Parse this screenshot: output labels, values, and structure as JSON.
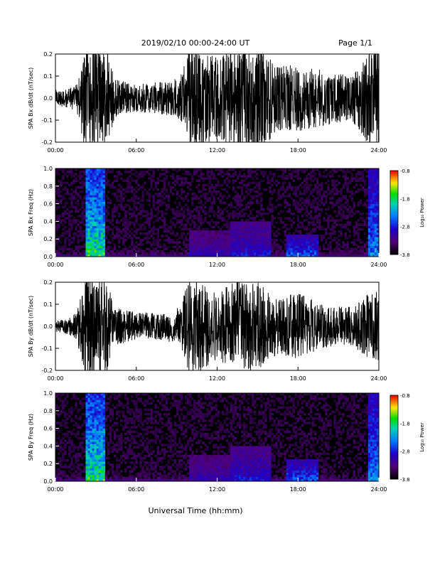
{
  "header": {
    "title": "2019/02/10  00:00-24:00 UT",
    "page": "Page 1/1"
  },
  "xlabel": "Universal Time (hh:mm)",
  "colorbar": {
    "label": "Log₁₀ Power",
    "ticks": [
      "-0.8",
      "-1.8",
      "-2.8",
      "-3.8"
    ],
    "range": [
      -3.8,
      -0.8
    ]
  },
  "chart_data": [
    {
      "type": "line",
      "title": "",
      "ylabel": "SPA Bx dB/dt (nT/sec)",
      "xticks": [
        "00:00",
        "06:00",
        "12:00",
        "18:00",
        "24:00"
      ],
      "yticks": [
        "0.2",
        "0.1",
        "0.0",
        "-0.1",
        "-0.2"
      ],
      "xlim": [
        0,
        24
      ],
      "ylim": [
        -0.2,
        0.2
      ],
      "envelope": [
        {
          "x": 0,
          "amp": 0.03
        },
        {
          "x": 1,
          "amp": 0.035
        },
        {
          "x": 1.6,
          "amp": 0.05
        },
        {
          "x": 2.2,
          "amp": 0.2
        },
        {
          "x": 3,
          "amp": 0.2
        },
        {
          "x": 3.8,
          "amp": 0.18
        },
        {
          "x": 4.4,
          "amp": 0.07
        },
        {
          "x": 6,
          "amp": 0.05
        },
        {
          "x": 8,
          "amp": 0.06
        },
        {
          "x": 9.3,
          "amp": 0.08
        },
        {
          "x": 10,
          "amp": 0.2
        },
        {
          "x": 12,
          "amp": 0.15
        },
        {
          "x": 13.5,
          "amp": 0.2
        },
        {
          "x": 15,
          "amp": 0.2
        },
        {
          "x": 16.5,
          "amp": 0.12
        },
        {
          "x": 18,
          "amp": 0.12
        },
        {
          "x": 20,
          "amp": 0.1
        },
        {
          "x": 22,
          "amp": 0.08
        },
        {
          "x": 23.3,
          "amp": 0.18
        },
        {
          "x": 24,
          "amp": 0.2
        }
      ]
    },
    {
      "type": "heatmap",
      "title": "",
      "ylabel": "SPA Bx Freq (Hz)",
      "xticks": [
        "00:00",
        "06:00",
        "12:00",
        "18:00",
        "24:00"
      ],
      "yticks": [
        "1.0",
        "0.8",
        "0.6",
        "0.4",
        "0.2",
        "0.0"
      ],
      "xlim": [
        0,
        24
      ],
      "ylim": [
        0,
        1.0
      ],
      "zlabel": "Log₁₀ Power",
      "zlim": [
        -3.8,
        -0.8
      ],
      "features": [
        {
          "x0": 2.3,
          "x1": 3.6,
          "fmax": 1.0,
          "peak": -1.3
        },
        {
          "x0": 10,
          "x1": 13,
          "fmax": 0.3,
          "peak": -2.8
        },
        {
          "x0": 13,
          "x1": 16,
          "fmax": 0.4,
          "peak": -2.6
        },
        {
          "x0": 17.2,
          "x1": 19.5,
          "fmax": 0.25,
          "peak": -2.2
        },
        {
          "x0": 23.2,
          "x1": 24,
          "fmax": 1.0,
          "peak": -2.0
        }
      ]
    },
    {
      "type": "line",
      "title": "",
      "ylabel": "SPA By dB/dt (nT/sec)",
      "xticks": [
        "00:00",
        "06:00",
        "12:00",
        "18:00",
        "24:00"
      ],
      "yticks": [
        "0.2",
        "0.1",
        "0.0",
        "-0.1",
        "-0.2"
      ],
      "xlim": [
        0,
        24
      ],
      "ylim": [
        -0.2,
        0.2
      ],
      "envelope": [
        {
          "x": 0,
          "amp": 0.02
        },
        {
          "x": 1,
          "amp": 0.03
        },
        {
          "x": 1.6,
          "amp": 0.05
        },
        {
          "x": 2.2,
          "amp": 0.2
        },
        {
          "x": 3,
          "amp": 0.2
        },
        {
          "x": 3.8,
          "amp": 0.18
        },
        {
          "x": 4.4,
          "amp": 0.07
        },
        {
          "x": 6,
          "amp": 0.05
        },
        {
          "x": 8,
          "amp": 0.05
        },
        {
          "x": 9.3,
          "amp": 0.07
        },
        {
          "x": 10,
          "amp": 0.2
        },
        {
          "x": 12,
          "amp": 0.12
        },
        {
          "x": 13.5,
          "amp": 0.17
        },
        {
          "x": 15,
          "amp": 0.16
        },
        {
          "x": 16.5,
          "amp": 0.1
        },
        {
          "x": 18,
          "amp": 0.12
        },
        {
          "x": 20,
          "amp": 0.08
        },
        {
          "x": 22,
          "amp": 0.07
        },
        {
          "x": 23.3,
          "amp": 0.12
        },
        {
          "x": 24,
          "amp": 0.13
        }
      ]
    },
    {
      "type": "heatmap",
      "title": "",
      "ylabel": "SPA By Freq (Hz)",
      "xticks": [
        "00:00",
        "06:00",
        "12:00",
        "18:00",
        "24:00"
      ],
      "yticks": [
        "1.0",
        "0.8",
        "0.6",
        "0.4",
        "0.2",
        "0.0"
      ],
      "xlim": [
        0,
        24
      ],
      "ylim": [
        0,
        1.0
      ],
      "zlabel": "Log₁₀ Power",
      "zlim": [
        -3.8,
        -0.8
      ],
      "features": [
        {
          "x0": 2.3,
          "x1": 3.6,
          "fmax": 1.0,
          "peak": -1.3
        },
        {
          "x0": 10,
          "x1": 13,
          "fmax": 0.3,
          "peak": -2.8
        },
        {
          "x0": 13,
          "x1": 16,
          "fmax": 0.4,
          "peak": -2.6
        },
        {
          "x0": 17.2,
          "x1": 19.5,
          "fmax": 0.25,
          "peak": -2.2
        },
        {
          "x0": 22.5,
          "x1": 22.6,
          "fmax": 1.0,
          "peak": -1.8
        },
        {
          "x0": 23.2,
          "x1": 24,
          "fmax": 1.0,
          "peak": -2.0
        }
      ]
    }
  ]
}
